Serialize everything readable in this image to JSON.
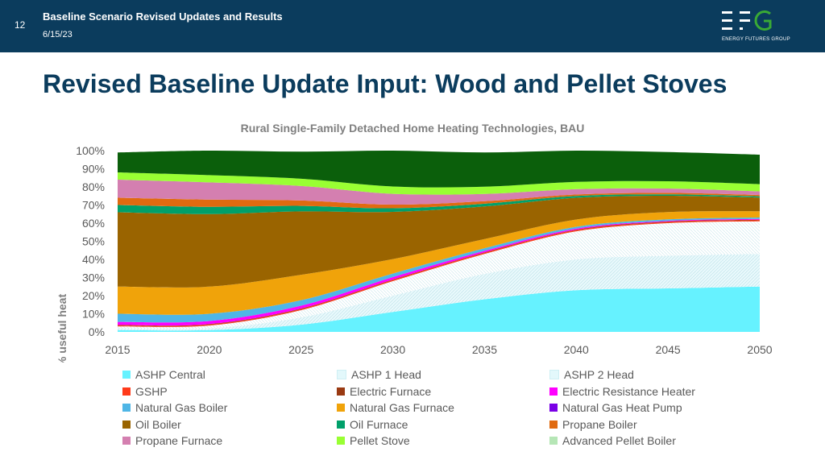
{
  "header": {
    "slide_number": "12",
    "title": "Baseline Scenario Revised Updates and Results",
    "date": "6/15/23",
    "logo_text": "EFG",
    "logo_subtitle": "ENERGY FUTURES GROUP"
  },
  "main_title": "Revised Baseline Update Input: Wood and Pellet Stoves",
  "colors": {
    "header_bg": "#0b3c5d",
    "title": "#0b3c5d",
    "logo_green": "#3aaa35"
  },
  "chart_data": {
    "type": "area",
    "stacked": true,
    "title": "Rural Single-Family Detached Home Heating Technologies, BAU",
    "ylabel": "% useful heat",
    "xlabel": "",
    "x": [
      2015,
      2020,
      2025,
      2030,
      2035,
      2040,
      2045,
      2050
    ],
    "x_ticks": [
      "2015",
      "2020",
      "2025",
      "2030",
      "2035",
      "2040",
      "2045",
      "2050"
    ],
    "ylim": [
      0,
      100
    ],
    "y_ticks": [
      "0%",
      "10%",
      "20%",
      "30%",
      "40%",
      "50%",
      "60%",
      "70%",
      "80%",
      "90%",
      "100%"
    ],
    "legend_position": "bottom",
    "series": [
      {
        "name": "ASHP Central",
        "color": "#66f2ff",
        "values": [
          1,
          1,
          4,
          11,
          18,
          23,
          24,
          25
        ]
      },
      {
        "name": "ASHP 1 Head",
        "color": "#e3f8fb",
        "hatched": true,
        "values": [
          1,
          1,
          4,
          9,
          14,
          17,
          18,
          18
        ]
      },
      {
        "name": "ASHP 2 Head",
        "color": "#e3f8fb",
        "hatched": true,
        "values": [
          1,
          1.5,
          4,
          8,
          11,
          15.5,
          18,
          18
        ]
      },
      {
        "name": "GSHP",
        "color": "#ff3a1a",
        "values": [
          0.5,
          0.5,
          0.6,
          0.6,
          0.6,
          0.6,
          0.6,
          0.6
        ]
      },
      {
        "name": "Electric Furnace",
        "color": "#9a3a12",
        "values": [
          0.3,
          0.3,
          0.3,
          0.3,
          0.3,
          0.3,
          0.3,
          0.3
        ]
      },
      {
        "name": "Electric Resistance Heater",
        "color": "#ff00ff",
        "values": [
          1.7,
          1.7,
          1.6,
          1.3,
          0.8,
          0.6,
          0.4,
          0.4
        ]
      },
      {
        "name": "Natural Gas Boiler",
        "color": "#4fb6e6",
        "values": [
          4.5,
          4,
          3,
          2,
          1.5,
          1,
          0.8,
          0.8
        ]
      },
      {
        "name": "Natural Gas Furnace",
        "color": "#f0a30a",
        "values": [
          15,
          15,
          14,
          8,
          5,
          4,
          4,
          3.5
        ]
      },
      {
        "name": "Natural Gas Heat Pump",
        "color": "#7a00e6",
        "values": [
          0,
          0,
          0,
          0,
          0,
          0,
          0,
          0
        ]
      },
      {
        "name": "Oil Boiler",
        "color": "#9a6400",
        "values": [
          41,
          40,
          35,
          26,
          18,
          12,
          9,
          7.5
        ]
      },
      {
        "name": "Oil Furnace",
        "color": "#00a06a",
        "values": [
          4,
          4,
          3,
          2,
          1.5,
          1,
          0.8,
          0.7
        ]
      },
      {
        "name": "Propane Boiler",
        "color": "#e06a10",
        "values": [
          4,
          4,
          3,
          2,
          1.4,
          0.8,
          0.8,
          0.7
        ]
      },
      {
        "name": "Propane Furnace",
        "color": "#d47fb0",
        "values": [
          10,
          9.5,
          8,
          6,
          4,
          3,
          2.4,
          2
        ]
      },
      {
        "name": "Pellet Stove",
        "color": "#99ff33",
        "values": [
          4,
          4,
          4,
          4,
          4,
          4,
          4,
          4
        ]
      },
      {
        "name": "Advanced Pellet Boiler",
        "color": "#b6e6b6",
        "values": [
          0,
          0,
          0,
          0,
          0,
          0,
          0,
          0
        ]
      },
      {
        "name": "",
        "color": "#0b5f0b",
        "values": [
          11,
          13.5,
          14.9,
          19.8,
          18.9,
          17.2,
          16.1,
          16.3
        ]
      }
    ]
  }
}
